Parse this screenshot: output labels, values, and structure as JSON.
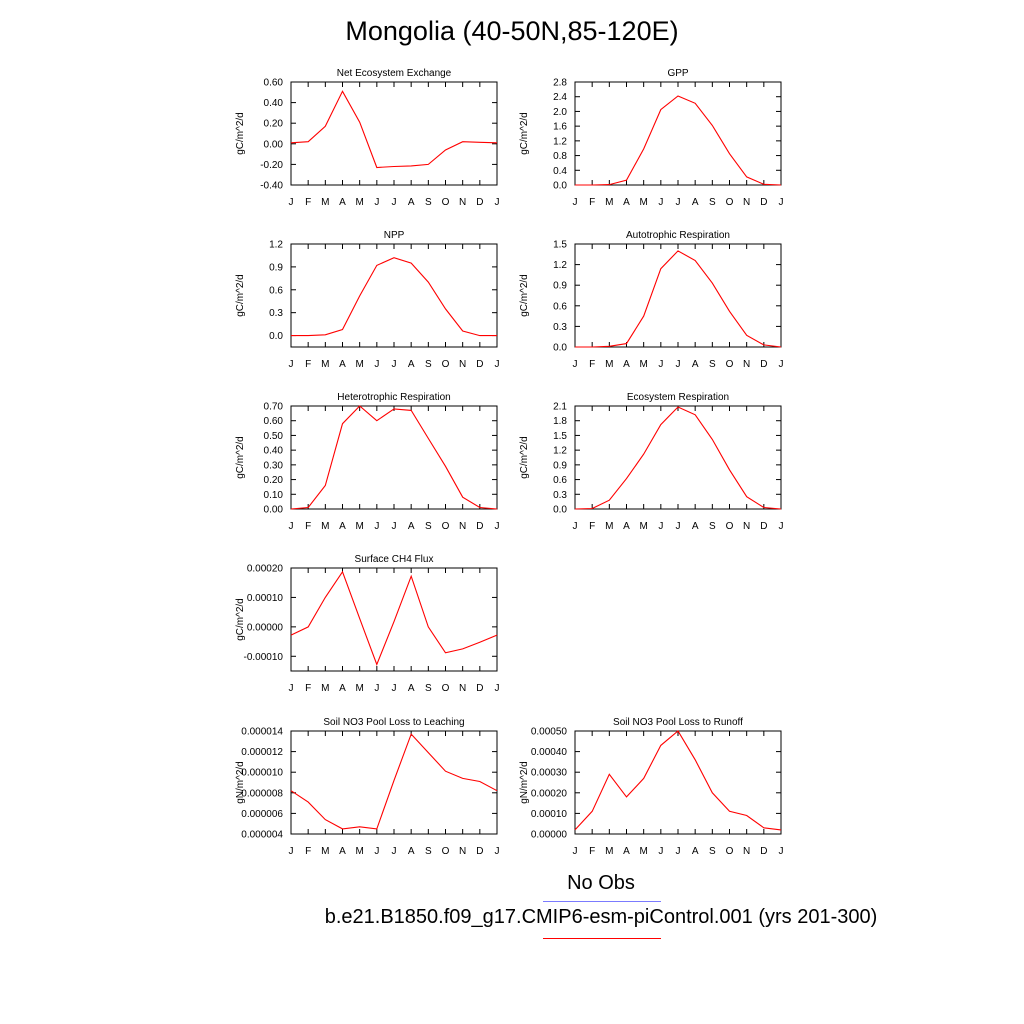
{
  "title": "Mongolia (40-50N,85-120E)",
  "colors": {
    "model": "#ff0000",
    "obs": "#7b7bff",
    "axis": "#000000"
  },
  "legend": {
    "obs_label": "No Obs",
    "model_label": "b.e21.B1850.f09_g17.CMIP6-esm-piControl.001 (yrs 201-300)"
  },
  "months": [
    "J",
    "F",
    "M",
    "A",
    "M",
    "J",
    "J",
    "A",
    "S",
    "O",
    "N",
    "D",
    "J"
  ],
  "chart_data": [
    {
      "type": "line",
      "title": "Net Ecosystem Exchange",
      "ylabel": "gC/m^2/d",
      "ylim": [
        -0.4,
        0.6
      ],
      "yticks": [
        -0.4,
        -0.2,
        0.0,
        0.2,
        0.4,
        0.6
      ],
      "yticklabels": [
        "-0.40",
        "-0.20",
        "0.00",
        "0.20",
        "0.40",
        "0.60"
      ],
      "values": [
        0.01,
        0.02,
        0.17,
        0.51,
        0.21,
        -0.23,
        -0.22,
        -0.215,
        -0.2,
        -0.06,
        0.02,
        0.015,
        0.01
      ]
    },
    {
      "type": "line",
      "title": "GPP",
      "ylabel": "gC/m^2/d",
      "ylim": [
        0,
        2.8
      ],
      "yticks": [
        0,
        0.4,
        0.8,
        1.2,
        1.6,
        2.0,
        2.4,
        2.8
      ],
      "yticklabels": [
        "0.0",
        "0.4",
        "0.8",
        "1.2",
        "1.6",
        "2.0",
        "2.4",
        "2.8"
      ],
      "values": [
        0.0,
        0.0,
        0.01,
        0.13,
        0.98,
        2.05,
        2.42,
        2.22,
        1.62,
        0.85,
        0.22,
        0.02,
        0.0
      ]
    },
    {
      "type": "line",
      "title": "NPP",
      "ylabel": "gC/m^2/d",
      "ylim": [
        -0.15,
        1.2
      ],
      "yticks": [
        0,
        0.3,
        0.6,
        0.9,
        1.2
      ],
      "yticklabels": [
        "0.0",
        "0.3",
        "0.6",
        "0.9",
        "1.2"
      ],
      "values": [
        0.0,
        0.0,
        0.01,
        0.08,
        0.52,
        0.92,
        1.02,
        0.95,
        0.7,
        0.35,
        0.06,
        0.0,
        0.0
      ]
    },
    {
      "type": "line",
      "title": "Autotrophic Respiration",
      "ylabel": "gC/m^2/d",
      "ylim": [
        0,
        1.5
      ],
      "yticks": [
        0,
        0.3,
        0.6,
        0.9,
        1.2,
        1.5
      ],
      "yticklabels": [
        "0.0",
        "0.3",
        "0.6",
        "0.9",
        "1.2",
        "1.5"
      ],
      "values": [
        0.0,
        0.0,
        0.01,
        0.05,
        0.45,
        1.14,
        1.4,
        1.26,
        0.93,
        0.52,
        0.17,
        0.03,
        0.0
      ]
    },
    {
      "type": "line",
      "title": "Heterotrophic Respiration",
      "ylabel": "gC/m^2/d",
      "ylim": [
        0,
        0.7
      ],
      "yticks": [
        0,
        0.1,
        0.2,
        0.3,
        0.4,
        0.5,
        0.6,
        0.7
      ],
      "yticklabels": [
        "0.00",
        "0.10",
        "0.20",
        "0.30",
        "0.40",
        "0.50",
        "0.60",
        "0.70"
      ],
      "values": [
        0.0,
        0.01,
        0.16,
        0.58,
        0.7,
        0.6,
        0.68,
        0.67,
        0.48,
        0.29,
        0.08,
        0.01,
        0.0
      ]
    },
    {
      "type": "line",
      "title": "Ecosystem Respiration",
      "ylabel": "gC/m^2/d",
      "ylim": [
        0,
        2.1
      ],
      "yticks": [
        0,
        0.3,
        0.6,
        0.9,
        1.2,
        1.5,
        1.8,
        2.1
      ],
      "yticklabels": [
        "0.0",
        "0.3",
        "0.6",
        "0.9",
        "1.2",
        "1.5",
        "1.8",
        "2.1"
      ],
      "values": [
        0.0,
        0.01,
        0.18,
        0.62,
        1.12,
        1.72,
        2.08,
        1.92,
        1.42,
        0.8,
        0.25,
        0.03,
        0.0
      ]
    },
    {
      "type": "line",
      "title": "Surface CH4 Flux",
      "ylabel": "gC/m^2/d",
      "ylim": [
        -0.00015,
        0.0002
      ],
      "yticks": [
        -0.0001,
        0,
        0.0001,
        0.0002
      ],
      "yticklabels": [
        "-0.00010",
        "0.00000",
        "0.00010",
        "0.00020"
      ],
      "values": [
        -2.8e-05,
        0.0,
        0.0001,
        0.000187,
        2.8e-05,
        -0.000128,
        1.8e-05,
        0.000172,
        0.0,
        -8.8e-05,
        -7.5e-05,
        -5.2e-05,
        -2.8e-05
      ]
    },
    {
      "type": "line",
      "title": "Soil NO3 Pool Loss to Leaching",
      "ylabel": "gN/m^2/d",
      "ylim": [
        4e-06,
        1.4e-05
      ],
      "yticks": [
        4e-06,
        6e-06,
        8e-06,
        1e-05,
        1.2e-05,
        1.4e-05
      ],
      "yticklabels": [
        "0.000004",
        "0.000006",
        "0.000008",
        "0.000010",
        "0.000012",
        "0.000014"
      ],
      "values": [
        8.2e-06,
        7.1e-06,
        5.4e-06,
        4.5e-06,
        4.7e-06,
        4.5e-06,
        9.2e-06,
        1.37e-05,
        1.19e-05,
        1.01e-05,
        9.4e-06,
        9.1e-06,
        8.2e-06
      ]
    },
    {
      "type": "line",
      "title": "Soil NO3 Pool Loss to Runoff",
      "ylabel": "gN/m^2/d",
      "ylim": [
        0,
        0.0005
      ],
      "yticks": [
        0,
        0.0001,
        0.0002,
        0.0003,
        0.0004,
        0.0005
      ],
      "yticklabels": [
        "0.00000",
        "0.00010",
        "0.00020",
        "0.00030",
        "0.00040",
        "0.00050"
      ],
      "values": [
        2e-05,
        0.00011,
        0.00029,
        0.00018,
        0.00027,
        0.00043,
        0.0005,
        0.00036,
        0.0002,
        0.00011,
        9e-05,
        3e-05,
        2e-05
      ]
    }
  ]
}
